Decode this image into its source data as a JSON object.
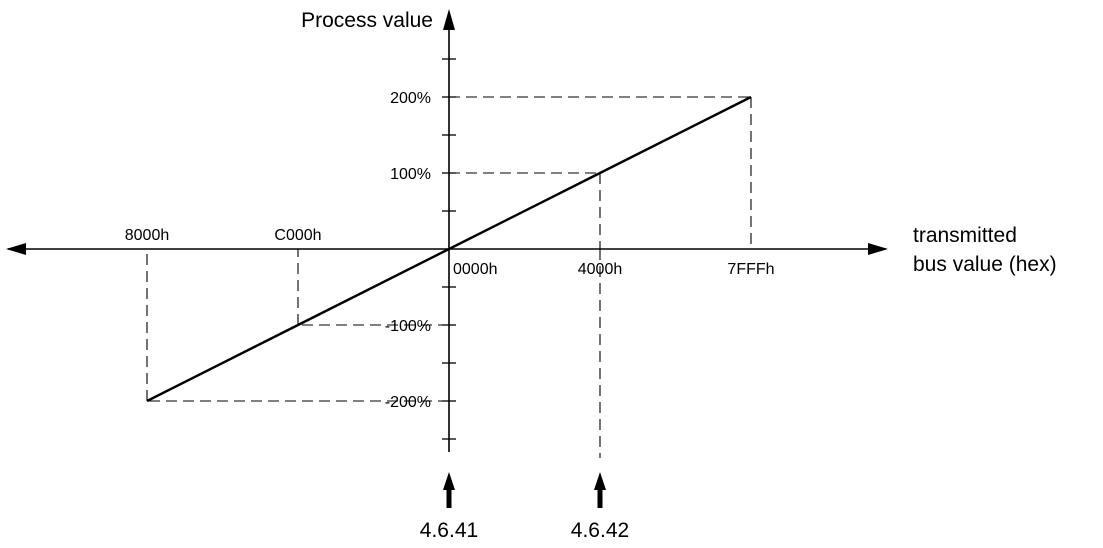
{
  "chart_data": {
    "type": "line",
    "ylabel": "Process value",
    "xlabel_lines": [
      "transmitted",
      "bus value (hex)"
    ],
    "x": [
      "8000h",
      "C000h",
      "0000h",
      "4000h",
      "7FFFh"
    ],
    "y": [
      -200,
      -100,
      0,
      100,
      200
    ],
    "x_numeric": [
      -32768,
      -16384,
      0,
      16384,
      32767
    ],
    "x_tick_labels_top": [
      "8000h",
      "C000h"
    ],
    "x_tick_labels_bottom": [
      "0000h",
      "4000h",
      "7FFFh"
    ],
    "y_tick_labels": [
      "200%",
      "100%",
      "-100%",
      "-200%"
    ],
    "y_tick_values": [
      200,
      100,
      -100,
      -200
    ],
    "xlim": [
      -40000,
      40000
    ],
    "ylim": [
      -250,
      300
    ],
    "minor_y_ticks": [
      250,
      150,
      50,
      -50,
      -150,
      -250
    ],
    "reference_lines": [
      {
        "x": "7FFFh",
        "y": 200
      },
      {
        "x": "4000h",
        "y": 100
      },
      {
        "x": "C000h",
        "y": -100
      },
      {
        "x": "8000h",
        "y": -200
      }
    ],
    "markers": [
      {
        "label": "4.6.41",
        "x": "0000h"
      },
      {
        "label": "4.6.42",
        "x": "4000h"
      }
    ],
    "grid": false,
    "colors": {
      "line": "#000000",
      "background": "#ffffff"
    }
  }
}
